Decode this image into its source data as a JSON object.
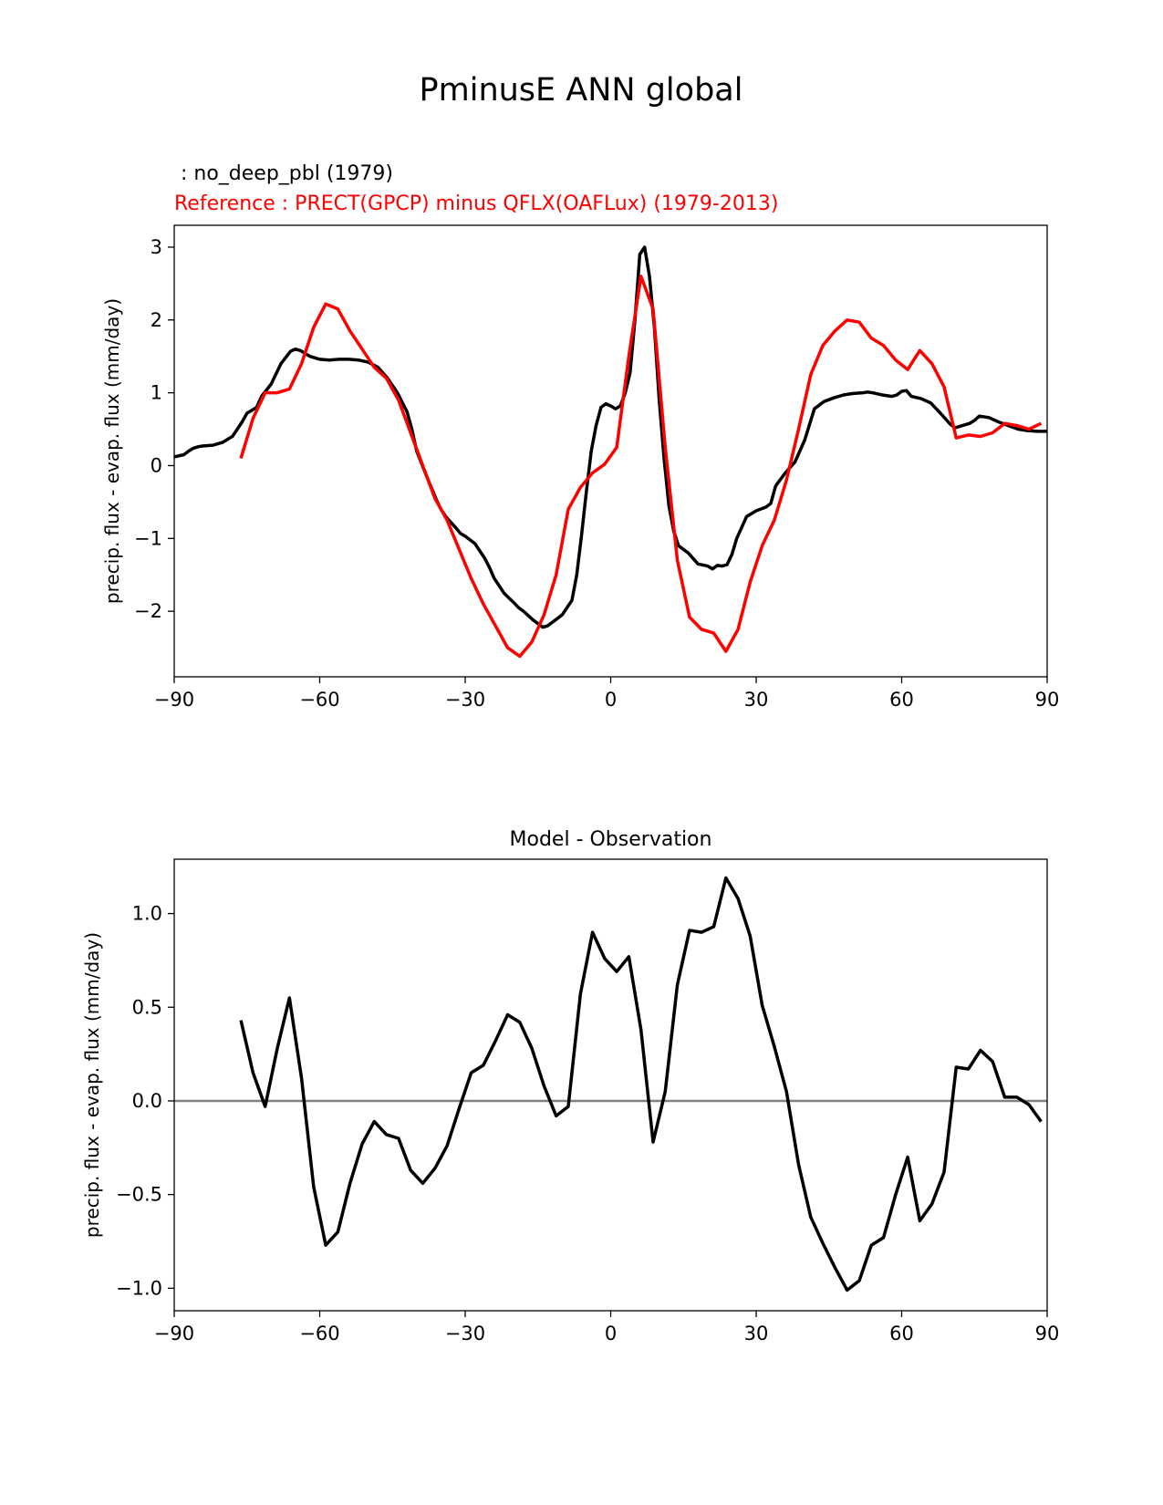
{
  "figure": {
    "title": "PminusE ANN global",
    "test_label": " : no_deep_pbl (1979)",
    "reference_label": "Reference : PRECT(GPCP) minus QFLX(OAFLux) (1979-2013)",
    "diff_title": "Model - Observation",
    "colors": {
      "test": "#000000",
      "reference": "#ff0000",
      "zero_line": "#808080"
    }
  },
  "chart_data": [
    {
      "type": "line",
      "xlabel": "",
      "ylabel": "precip. flux - evap. flux (mm/day)",
      "xlim": [
        -90,
        90
      ],
      "ylim": [
        -2.9,
        3.3
      ],
      "xticks": [
        -90,
        -60,
        -30,
        0,
        30,
        60,
        90
      ],
      "xtick_labels": [
        "−90",
        "−60",
        "−30",
        "0",
        "30",
        "60",
        "90"
      ],
      "yticks": [
        3,
        2,
        1,
        0,
        -1,
        -2
      ],
      "ytick_labels": [
        "3",
        "2",
        "1",
        "0",
        "−1",
        "−2"
      ],
      "grid": false,
      "series": [
        {
          "name": "no_deep_pbl (1979)",
          "color": "#000000",
          "x": [
            -90,
            -88,
            -87,
            -86,
            -85,
            -84,
            -82,
            -80,
            -78,
            -76,
            -75,
            -73,
            -72,
            -70,
            -68,
            -66,
            -65,
            -64,
            -62,
            -60,
            -58,
            -56,
            -54,
            -52,
            -50,
            -48,
            -46,
            -44,
            -42,
            -41,
            -40,
            -38,
            -36,
            -35,
            -34,
            -32,
            -31,
            -30,
            -28,
            -26,
            -25,
            -24,
            -22,
            -20,
            -19,
            -18,
            -16,
            -14,
            -13,
            -12,
            -10,
            -8,
            -7,
            -6,
            -5,
            -4,
            -3,
            -2,
            -1,
            0,
            1,
            2,
            3,
            4,
            5,
            6,
            7,
            8,
            9,
            10,
            11,
            12,
            13,
            14,
            16,
            18,
            20,
            21,
            22,
            23,
            24,
            25,
            26,
            27,
            28,
            30,
            32,
            33,
            34,
            36,
            38,
            40,
            42,
            44,
            46,
            48,
            50,
            52,
            53,
            54,
            56,
            58,
            59,
            60,
            61,
            62,
            64,
            66,
            68,
            70,
            71,
            72,
            74,
            75,
            76,
            78,
            80,
            82,
            84,
            86,
            88,
            90
          ],
          "y": [
            0.12,
            0.15,
            0.2,
            0.24,
            0.26,
            0.27,
            0.28,
            0.32,
            0.4,
            0.6,
            0.72,
            0.8,
            0.95,
            1.12,
            1.4,
            1.57,
            1.6,
            1.58,
            1.5,
            1.46,
            1.45,
            1.46,
            1.46,
            1.45,
            1.42,
            1.35,
            1.2,
            1.0,
            0.74,
            0.5,
            0.2,
            -0.14,
            -0.46,
            -0.6,
            -0.7,
            -0.85,
            -0.93,
            -0.97,
            -1.07,
            -1.27,
            -1.4,
            -1.55,
            -1.75,
            -1.88,
            -1.95,
            -2.0,
            -2.12,
            -2.22,
            -2.2,
            -2.15,
            -2.05,
            -1.85,
            -1.5,
            -0.95,
            -0.35,
            0.2,
            0.55,
            0.8,
            0.85,
            0.82,
            0.78,
            0.82,
            1.0,
            1.28,
            2.0,
            2.9,
            3.0,
            2.6,
            1.9,
            0.9,
            0.1,
            -0.55,
            -0.9,
            -1.1,
            -1.2,
            -1.35,
            -1.38,
            -1.42,
            -1.37,
            -1.38,
            -1.36,
            -1.22,
            -1.0,
            -0.85,
            -0.7,
            -0.62,
            -0.57,
            -0.52,
            -0.28,
            -0.1,
            0.05,
            0.35,
            0.78,
            0.88,
            0.93,
            0.97,
            0.99,
            1.0,
            1.01,
            1.0,
            0.97,
            0.95,
            0.97,
            1.02,
            1.03,
            0.95,
            0.92,
            0.86,
            0.72,
            0.57,
            0.52,
            0.54,
            0.58,
            0.62,
            0.68,
            0.66,
            0.6,
            0.55,
            0.5,
            0.48,
            0.47,
            0.47
          ]
        },
        {
          "name": "Reference : PRECT(GPCP) minus QFLX(OAFLux) (1979-2013)",
          "color": "#ff0000",
          "x": [
            -76.25,
            -73.75,
            -71.25,
            -68.75,
            -66.25,
            -63.75,
            -61.25,
            -58.75,
            -56.25,
            -53.75,
            -51.25,
            -48.75,
            -46.25,
            -43.75,
            -41.25,
            -38.75,
            -36.25,
            -33.75,
            -31.25,
            -28.75,
            -26.25,
            -23.75,
            -21.25,
            -18.75,
            -16.25,
            -13.75,
            -11.25,
            -8.75,
            -6.25,
            -3.75,
            -1.25,
            1.25,
            3.75,
            6.25,
            8.75,
            11.25,
            13.75,
            16.25,
            18.75,
            21.25,
            23.75,
            26.25,
            28.75,
            31.25,
            33.75,
            36.25,
            38.75,
            41.25,
            43.75,
            46.25,
            48.75,
            51.25,
            53.75,
            56.25,
            58.75,
            61.25,
            63.75,
            66.25,
            68.75,
            71.25,
            73.75,
            76.25,
            78.75,
            81.25,
            83.75,
            86.25,
            88.75
          ],
          "y": [
            0.1,
            0.65,
            1.0,
            1.0,
            1.05,
            1.4,
            1.9,
            2.22,
            2.15,
            1.85,
            1.6,
            1.35,
            1.2,
            0.9,
            0.45,
            0.0,
            -0.45,
            -0.75,
            -1.15,
            -1.55,
            -1.9,
            -2.2,
            -2.5,
            -2.62,
            -2.42,
            -2.05,
            -1.5,
            -0.6,
            -0.3,
            -0.1,
            0.02,
            0.25,
            1.5,
            2.6,
            2.15,
            0.25,
            -1.3,
            -2.08,
            -2.25,
            -2.3,
            -2.55,
            -2.25,
            -1.6,
            -1.1,
            -0.75,
            -0.2,
            0.5,
            1.25,
            1.65,
            1.85,
            2.0,
            1.97,
            1.75,
            1.65,
            1.45,
            1.32,
            1.58,
            1.4,
            1.08,
            0.38,
            0.42,
            0.4,
            0.45,
            0.58,
            0.55,
            0.5,
            0.58
          ]
        }
      ]
    },
    {
      "type": "line",
      "title": "Model - Observation",
      "xlabel": "",
      "ylabel": "precip. flux - evap. flux (mm/day)",
      "xlim": [
        -90,
        90
      ],
      "ylim": [
        -1.12,
        1.29
      ],
      "xticks": [
        -90,
        -60,
        -30,
        0,
        30,
        60,
        90
      ],
      "xtick_labels": [
        "−90",
        "−60",
        "−30",
        "0",
        "30",
        "60",
        "90"
      ],
      "yticks": [
        1.0,
        0.5,
        0.0,
        -0.5,
        -1.0
      ],
      "ytick_labels": [
        "1.0",
        "0.5",
        "0.0",
        "−0.5",
        "−1.0"
      ],
      "grid": false,
      "zero_line": 0,
      "series": [
        {
          "name": "Model - Observation",
          "color": "#000000",
          "x": [
            -76.25,
            -73.75,
            -71.25,
            -68.75,
            -66.25,
            -63.75,
            -61.25,
            -58.75,
            -56.25,
            -53.75,
            -51.25,
            -48.75,
            -46.25,
            -43.75,
            -41.25,
            -38.75,
            -36.25,
            -33.75,
            -31.25,
            -28.75,
            -26.25,
            -23.75,
            -21.25,
            -18.75,
            -16.25,
            -13.75,
            -11.25,
            -8.75,
            -6.25,
            -3.75,
            -1.25,
            1.25,
            3.75,
            6.25,
            8.75,
            11.25,
            13.75,
            16.25,
            18.75,
            21.25,
            23.75,
            26.25,
            28.75,
            31.25,
            33.75,
            36.25,
            38.75,
            41.25,
            43.75,
            46.25,
            48.75,
            51.25,
            53.75,
            56.25,
            58.75,
            61.25,
            63.75,
            66.25,
            68.75,
            71.25,
            73.75,
            76.25,
            78.75,
            81.25,
            83.75,
            86.25,
            88.75
          ],
          "y": [
            0.43,
            0.15,
            -0.03,
            0.28,
            0.55,
            0.12,
            -0.46,
            -0.77,
            -0.7,
            -0.44,
            -0.23,
            -0.11,
            -0.18,
            -0.2,
            -0.37,
            -0.44,
            -0.36,
            -0.24,
            -0.04,
            0.15,
            0.19,
            0.32,
            0.46,
            0.42,
            0.28,
            0.08,
            -0.08,
            -0.03,
            0.57,
            0.9,
            0.76,
            0.69,
            0.77,
            0.38,
            -0.22,
            0.05,
            0.62,
            0.91,
            0.9,
            0.93,
            1.19,
            1.08,
            0.88,
            0.51,
            0.29,
            0.05,
            -0.34,
            -0.62,
            -0.76,
            -0.89,
            -1.01,
            -0.96,
            -0.77,
            -0.73,
            -0.5,
            -0.3,
            -0.64,
            -0.55,
            -0.38,
            0.18,
            0.17,
            0.27,
            0.21,
            0.02,
            0.02,
            -0.02,
            -0.11
          ]
        }
      ]
    }
  ]
}
